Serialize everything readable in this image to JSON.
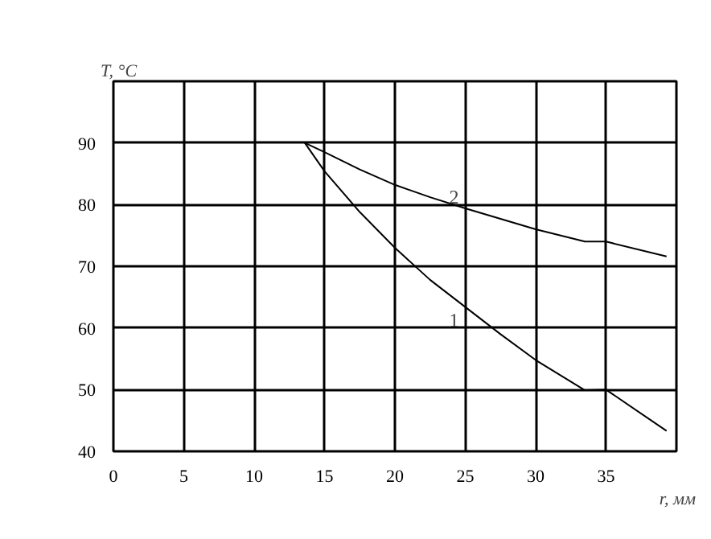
{
  "chart_data": {
    "type": "line",
    "ylabel": "T, °C",
    "xlabel": "r, мм",
    "xlim": [
      0,
      40
    ],
    "xticks": [
      0,
      5,
      10,
      15,
      20,
      25,
      30,
      35
    ],
    "ylim": [
      40,
      100
    ],
    "yticks": [
      40,
      50,
      60,
      70,
      80,
      90
    ],
    "grid": true,
    "marker": "none",
    "line_style": "solid",
    "series": [
      {
        "color": "#000000",
        "x": [
          13.6,
          15,
          17.5,
          20,
          22.5,
          25,
          27.5,
          30,
          33.5,
          35,
          39.3
        ],
        "values": [
          90,
          85.4,
          78.8,
          73,
          67.8,
          63.4,
          59,
          54.8,
          49.9,
          50,
          43.3
        ]
      },
      {
        "color": "#000000",
        "x": [
          13.6,
          15,
          17.5,
          20,
          22.5,
          25,
          27.5,
          30,
          33.5,
          35,
          39.3
        ],
        "values": [
          90,
          88.5,
          85.7,
          83.2,
          81.2,
          79.4,
          77.7,
          76,
          74,
          74,
          71.6
        ]
      }
    ],
    "annotations": [
      "1",
      "2"
    ]
  }
}
